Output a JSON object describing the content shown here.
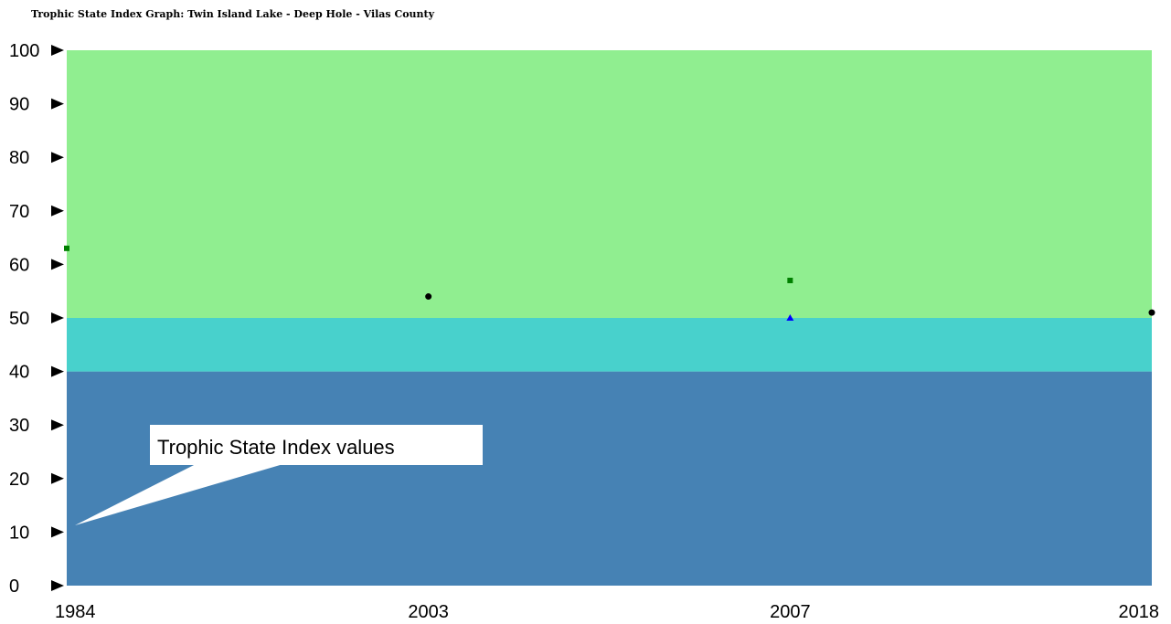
{
  "chart_data": {
    "type": "scatter",
    "title": "Trophic State Index Graph: Twin Island Lake - Deep Hole - Vilas County",
    "xlabel": "",
    "ylabel": "",
    "categories": [
      "1984",
      "2003",
      "2007",
      "2018"
    ],
    "ylim": [
      0,
      100
    ],
    "yticks": [
      0,
      10,
      20,
      30,
      40,
      50,
      60,
      70,
      80,
      90,
      100
    ],
    "grid": false,
    "background_bands": [
      {
        "from": 0,
        "to": 40,
        "color": "#4682B4"
      },
      {
        "from": 40,
        "to": 50,
        "color": "#48D1CC"
      },
      {
        "from": 50,
        "to": 100,
        "color": "#90EE90"
      }
    ],
    "series": [
      {
        "marker": "square",
        "color": "#008000",
        "points": [
          {
            "x": "1984",
            "y": 63
          },
          {
            "x": "2007",
            "y": 57
          }
        ]
      },
      {
        "marker": "circle",
        "color": "#000000",
        "points": [
          {
            "x": "2003",
            "y": 54
          },
          {
            "x": "2018",
            "y": 51
          }
        ]
      },
      {
        "marker": "triangle",
        "color": "#0000FF",
        "points": [
          {
            "x": "2007",
            "y": 50
          }
        ]
      }
    ],
    "annotation": "Trophic State Index values"
  }
}
